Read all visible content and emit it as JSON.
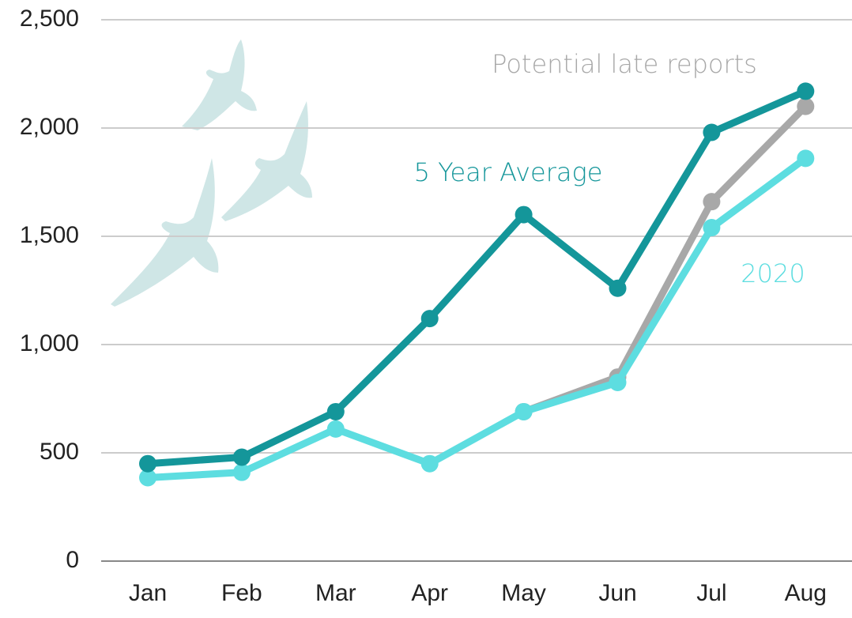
{
  "chart_data": {
    "type": "line",
    "categories": [
      "Jan",
      "Feb",
      "Mar",
      "Apr",
      "May",
      "Jun",
      "Jul",
      "Aug"
    ],
    "series": [
      {
        "name": "Potential late reports",
        "color": "#a8a8a8",
        "values": [
          null,
          null,
          null,
          null,
          690,
          850,
          1660,
          2100
        ]
      },
      {
        "name": "2020",
        "color": "#5ddde0",
        "values": [
          385,
          410,
          610,
          450,
          690,
          825,
          1540,
          1860
        ]
      },
      {
        "name": "5 Year Average",
        "color": "#14969a",
        "values": [
          450,
          480,
          690,
          1120,
          1600,
          1260,
          1980,
          2170
        ]
      }
    ],
    "ylim": [
      0,
      2500
    ],
    "yticks": [
      0,
      {
        "value": 500,
        "label": "500"
      },
      {
        "value": 1000,
        "label": "1,000"
      },
      {
        "value": 1500,
        "label": "1,500"
      },
      {
        "value": 2000,
        "label": "2,000"
      },
      {
        "value": 2500,
        "label": "2,500"
      }
    ],
    "grid": true
  }
}
